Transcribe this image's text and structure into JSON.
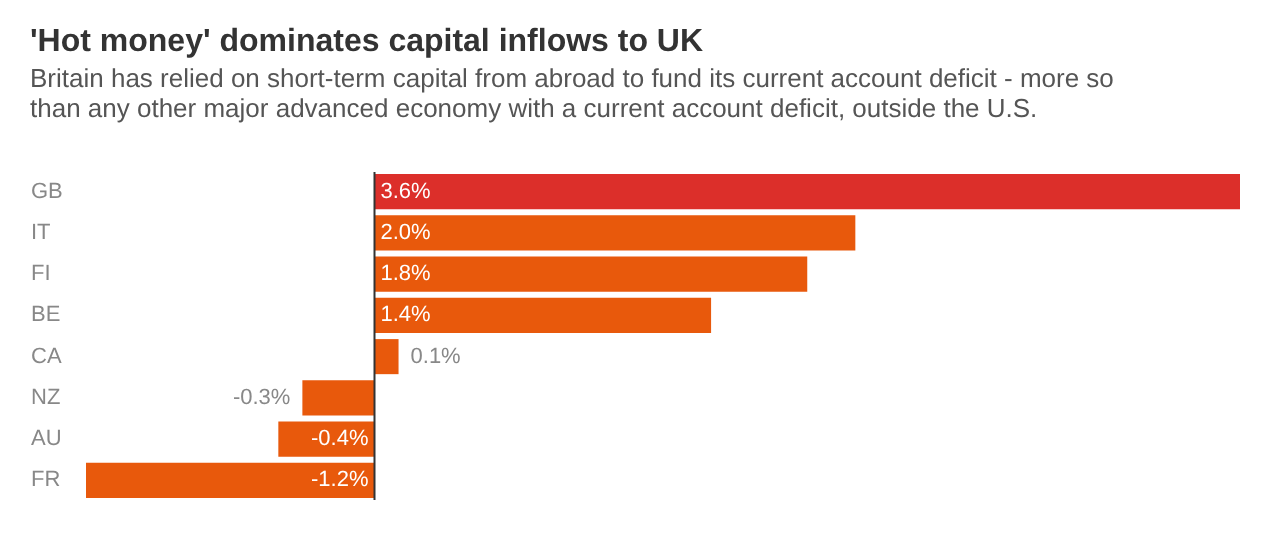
{
  "chart_data": {
    "type": "bar",
    "orientation": "horizontal",
    "title": "'Hot money' dominates capital inflows to UK",
    "subtitle": "Britain has relied on short-term capital from abroad to fund its current account deficit - more so than any other major advanced economy with a current account deficit, outside the U.S.",
    "categories": [
      "GB",
      "IT",
      "FI",
      "BE",
      "CA",
      "NZ",
      "AU",
      "FR"
    ],
    "values": [
      3.6,
      2.0,
      1.8,
      1.4,
      0.1,
      -0.3,
      -0.4,
      -1.2
    ],
    "colors": [
      "#dc2f2a",
      "#e8590c",
      "#e8590c",
      "#e8590c",
      "#e8590c",
      "#e8590c",
      "#e8590c",
      "#e8590c"
    ],
    "value_labels": [
      "3.6%",
      "2.0%",
      "1.8%",
      "1.4%",
      "0.1%",
      "-0.3%",
      "-0.4%",
      "-1.2%"
    ],
    "ref_lines": [
      {
        "axis": "x",
        "value": 0,
        "color": "#333333"
      }
    ]
  }
}
